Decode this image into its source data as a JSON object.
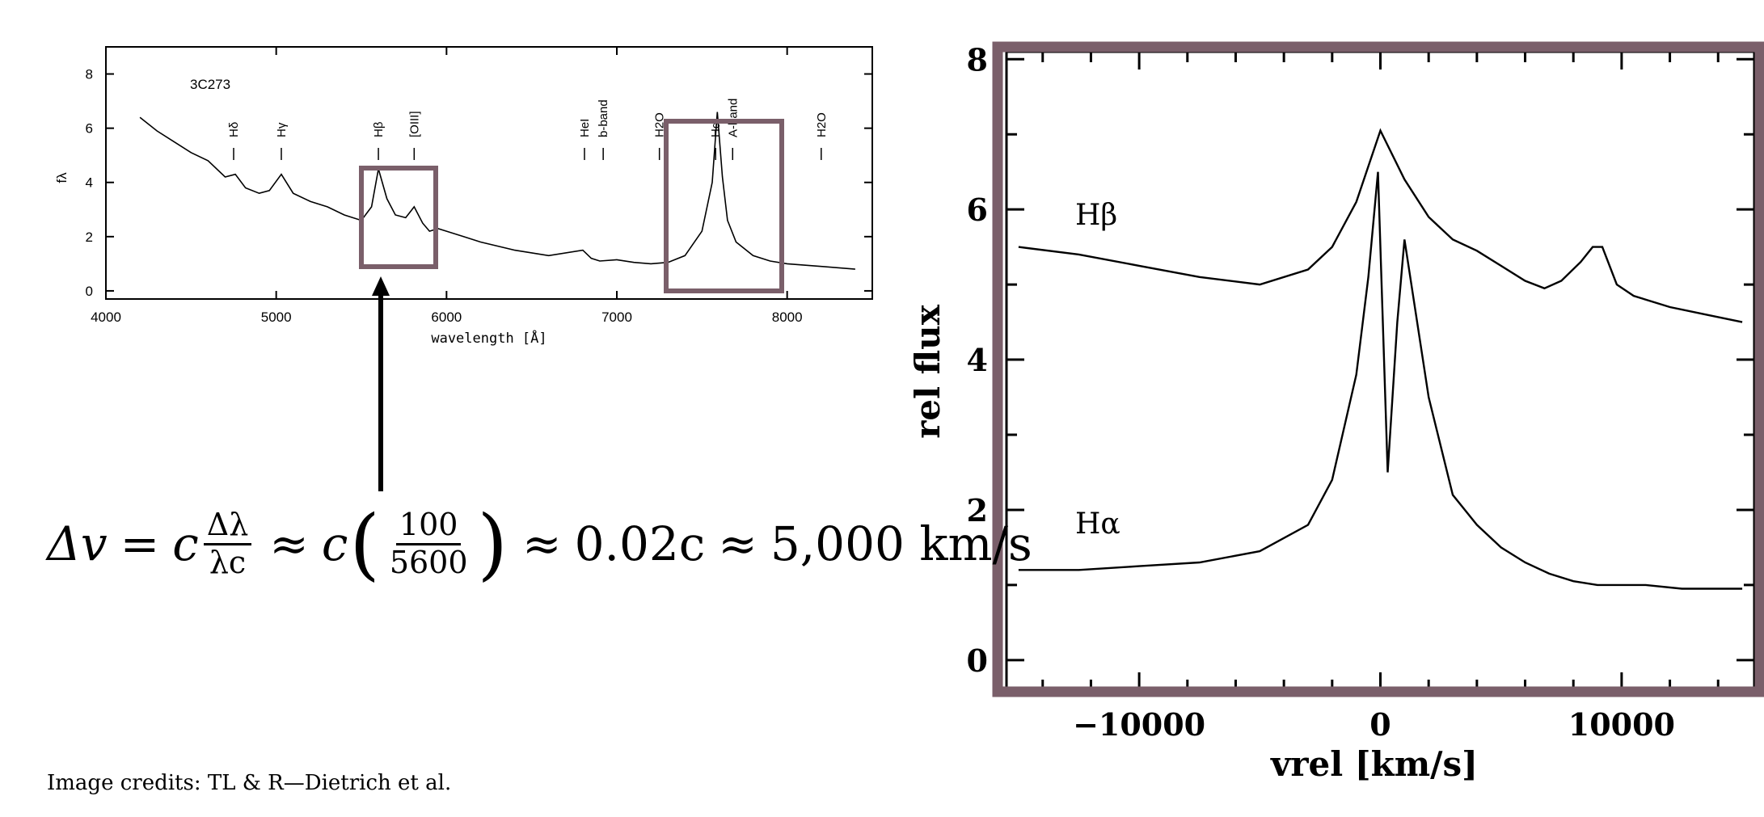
{
  "equation": {
    "delta_v": "Δv",
    "equals": "=",
    "c1": "c",
    "frac1_num": "Δλ",
    "frac1_den": "λc",
    "approx1": "≈",
    "c2": "c",
    "frac2_num": "100",
    "frac2_den": "5600",
    "approx2": "≈",
    "value1": "0.02c",
    "approx3": "≈",
    "value2": "5,000 km/s"
  },
  "credits": "Image credits: TL & R—Dietrich et al.",
  "colors": {
    "highlight_frame": "#7a5f6a",
    "line": "#000000",
    "axis": "#000000"
  },
  "chart_data": [
    {
      "type": "line",
      "object_label": "3C273",
      "xlabel": "wavelength [Å]",
      "ylabel": "fλ",
      "xlim": [
        4000,
        8500
      ],
      "ylim": [
        -0.3,
        9
      ],
      "xticks": [
        4000,
        5000,
        6000,
        7000,
        8000
      ],
      "yticks": [
        0,
        2,
        4,
        6,
        8
      ],
      "line_labels": [
        "Hδ",
        "Hγ",
        "Hβ",
        "[OIII]",
        "HeI",
        "b-band",
        "H2O",
        "Hα",
        "A-band",
        "H2O"
      ],
      "line_label_x": [
        4750,
        5030,
        5600,
        5810,
        6810,
        6920,
        7250,
        7580,
        7680,
        8200
      ],
      "series": [
        {
          "x": [
            4200,
            4300,
            4400,
            4500,
            4600,
            4700,
            4760,
            4820,
            4900,
            4960,
            5030,
            5100,
            5200,
            5300,
            5400,
            5500,
            5560,
            5600,
            5650,
            5700,
            5760,
            5810,
            5860,
            5900,
            5950,
            6000,
            6100,
            6200,
            6400,
            6600,
            6800,
            6850,
            6900,
            7000,
            7100,
            7200,
            7300,
            7400,
            7500,
            7560,
            7590,
            7620,
            7650,
            7700,
            7800,
            7900,
            8000,
            8200,
            8400
          ],
          "y": [
            6.4,
            5.9,
            5.5,
            5.1,
            4.8,
            4.2,
            4.3,
            3.8,
            3.6,
            3.7,
            4.3,
            3.6,
            3.3,
            3.1,
            2.8,
            2.6,
            3.1,
            4.5,
            3.4,
            2.8,
            2.7,
            3.1,
            2.5,
            2.2,
            2.3,
            2.2,
            2.0,
            1.8,
            1.5,
            1.3,
            1.5,
            1.2,
            1.1,
            1.15,
            1.05,
            1.0,
            1.05,
            1.3,
            2.2,
            4.0,
            6.6,
            4.2,
            2.6,
            1.8,
            1.3,
            1.1,
            1.0,
            0.9,
            0.8
          ]
        }
      ]
    },
    {
      "type": "line",
      "xlabel": "vrel [km/s]",
      "ylabel": "rel flux",
      "xlim": [
        -15500,
        15500
      ],
      "ylim": [
        -0.4,
        8.1
      ],
      "xticks": [
        -10000,
        0,
        10000
      ],
      "yticks": [
        0,
        2,
        4,
        6,
        8
      ],
      "series": [
        {
          "name": "Hβ",
          "x": [
            -15000,
            -12500,
            -10000,
            -7500,
            -5000,
            -3000,
            -2000,
            -1000,
            0,
            1000,
            2000,
            3000,
            4000,
            5000,
            6000,
            6800,
            7500,
            8300,
            8800,
            9200,
            9800,
            10500,
            12000,
            13500,
            15000
          ],
          "y": [
            5.5,
            5.4,
            5.25,
            5.1,
            5.0,
            5.2,
            5.5,
            6.1,
            7.05,
            6.4,
            5.9,
            5.6,
            5.45,
            5.25,
            5.05,
            4.95,
            5.05,
            5.3,
            5.5,
            5.5,
            5.0,
            4.85,
            4.7,
            4.6,
            4.5
          ]
        },
        {
          "name": "Hα",
          "x": [
            -15000,
            -12500,
            -10000,
            -7500,
            -5000,
            -3000,
            -2000,
            -1000,
            -500,
            -100,
            300,
            700,
            1000,
            2000,
            3000,
            4000,
            5000,
            6000,
            7000,
            8000,
            9000,
            10000,
            11000,
            12500,
            14000,
            15000
          ],
          "y": [
            1.2,
            1.2,
            1.25,
            1.3,
            1.45,
            1.8,
            2.4,
            3.8,
            5.1,
            6.5,
            2.5,
            4.5,
            5.6,
            3.5,
            2.2,
            1.8,
            1.5,
            1.3,
            1.15,
            1.05,
            1.0,
            1.0,
            1.0,
            0.95,
            0.95,
            0.95
          ]
        }
      ]
    }
  ]
}
